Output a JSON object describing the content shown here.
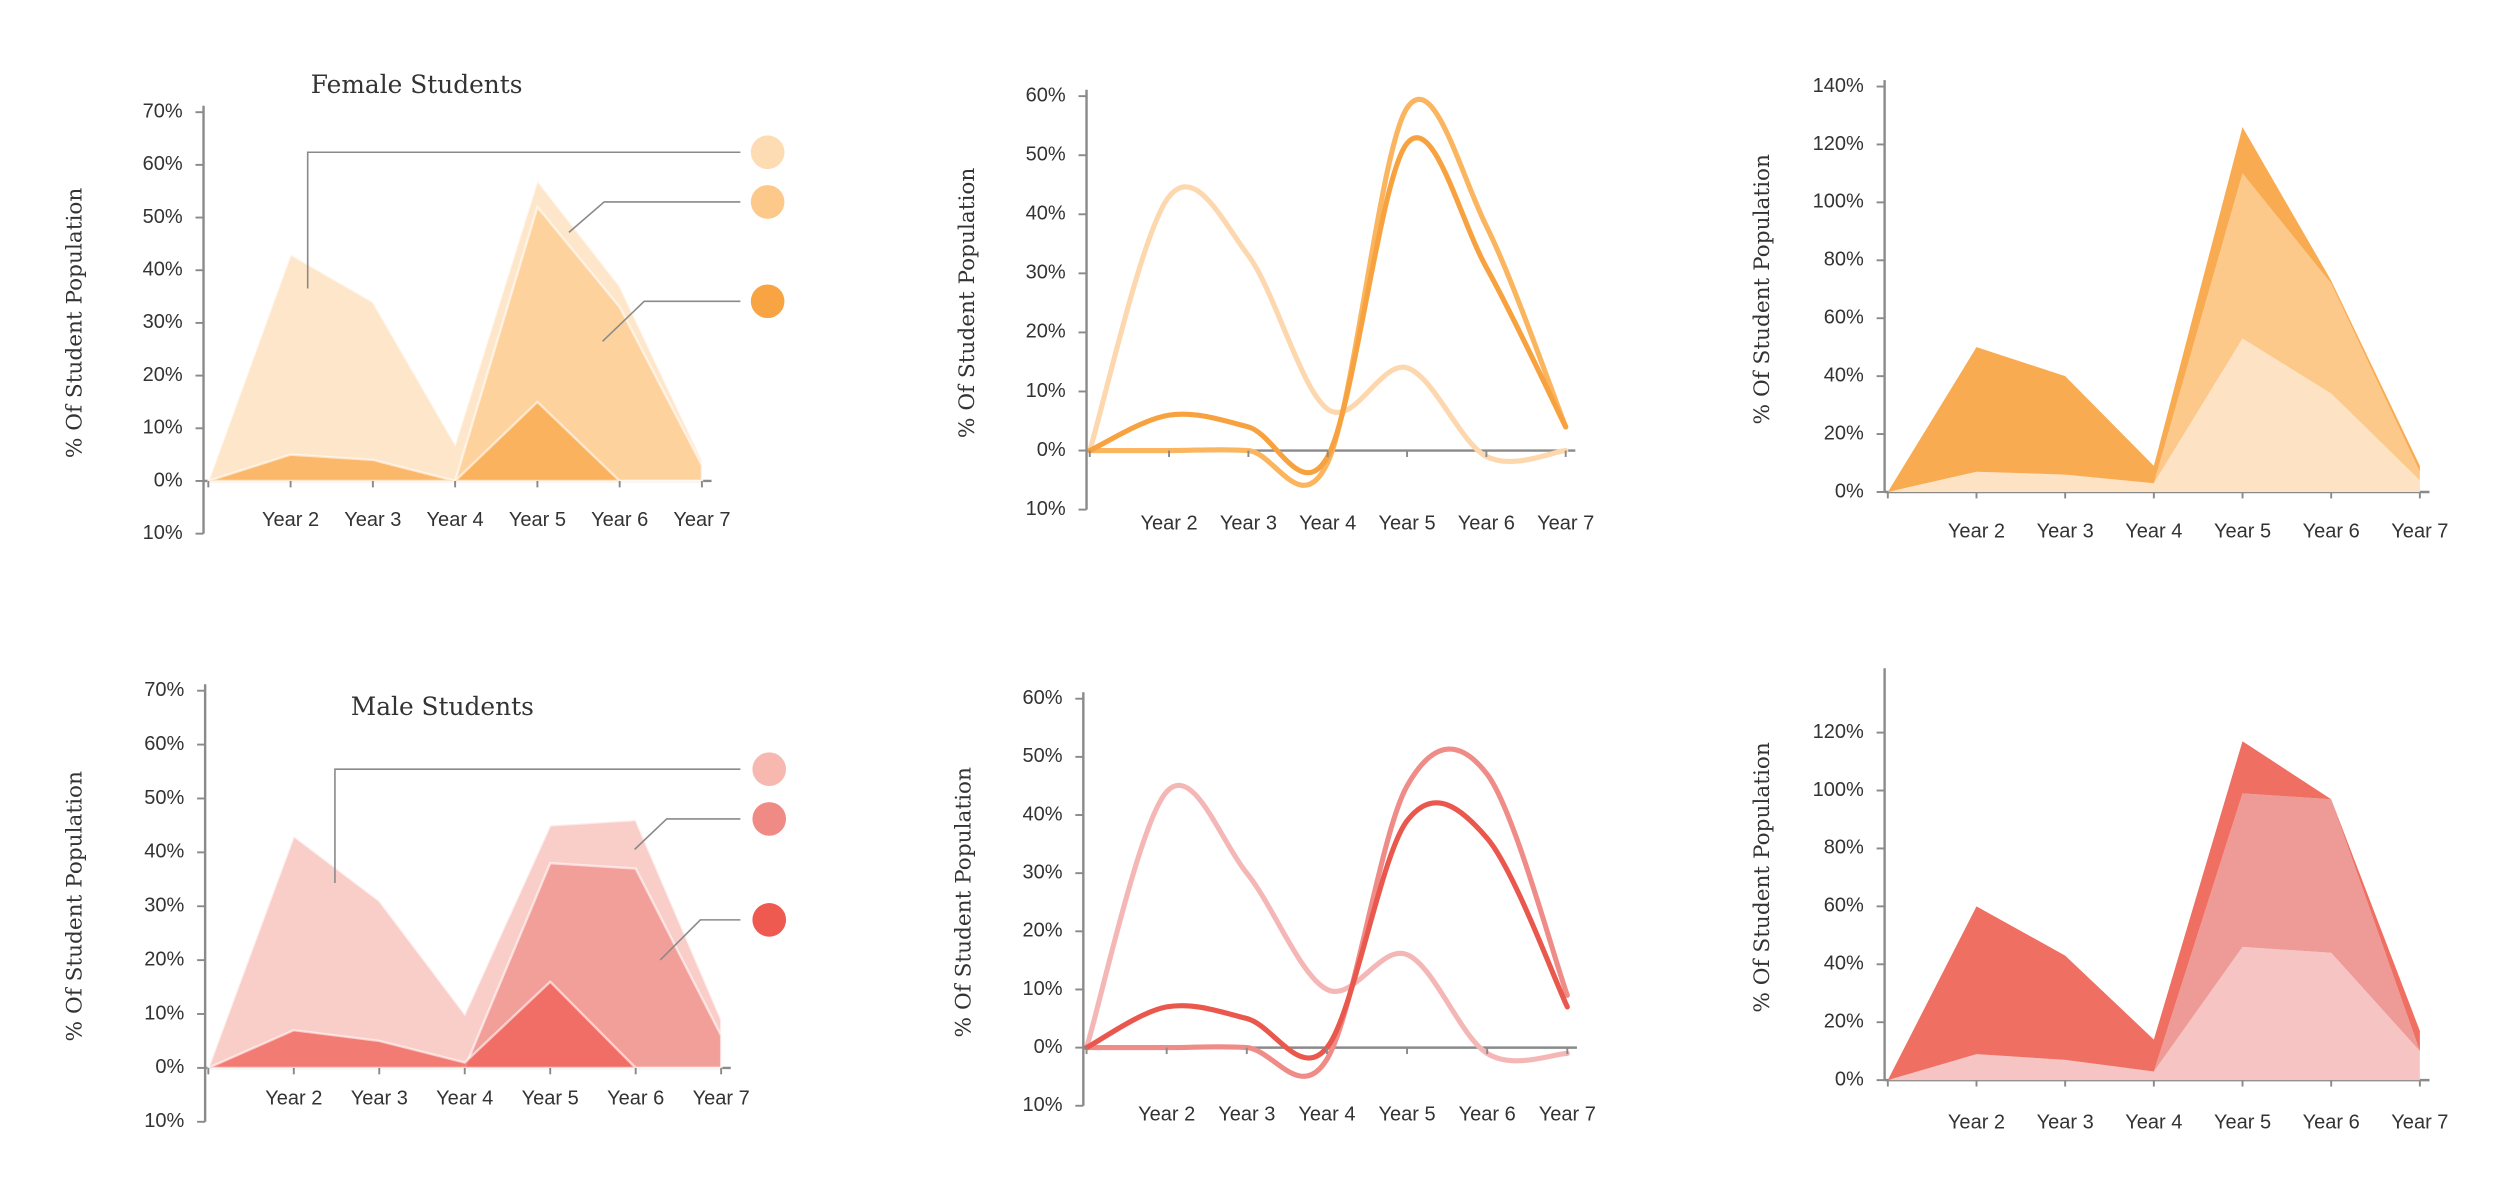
{
  "chart_data": [
    {
      "type": "area",
      "title": "Female Students",
      "y_label": "% Of Student Population",
      "categories": [
        null,
        "Year 2",
        "Year 3",
        "Year 4",
        "Year 5",
        "Year 6",
        "Year 7"
      ],
      "series": [
        {
          "color": "#fddcb4",
          "values": [
            0,
            43,
            34,
            7,
            57,
            37,
            4
          ]
        },
        {
          "color": "#fcc98a",
          "values": [
            0,
            0,
            0,
            0,
            52,
            33,
            3
          ]
        },
        {
          "color": "#f9a443",
          "values": [
            0,
            5,
            4,
            0,
            15,
            0,
            0
          ]
        }
      ],
      "ylim": [
        -10,
        70
      ],
      "yticks": [
        {
          "value": -10,
          "label": "10%"
        },
        {
          "value": 0,
          "label": "0%"
        },
        {
          "value": 10,
          "label": "10%"
        },
        {
          "value": 20,
          "label": "20%"
        },
        {
          "value": 30,
          "label": "30%"
        },
        {
          "value": 40,
          "label": "40%"
        },
        {
          "value": 50,
          "label": "50%"
        },
        {
          "value": 60,
          "label": "60%"
        },
        {
          "value": 70,
          "label": "70%"
        }
      ],
      "legend": true
    },
    {
      "type": "line",
      "y_label": "% Of Student Population",
      "categories": [
        null,
        "Year 2",
        "Year 3",
        "Year 4",
        "Year 5",
        "Year 6",
        "Year 7"
      ],
      "series": [
        {
          "color": "#fdd7ad",
          "values": [
            0,
            43,
            33,
            7,
            14,
            -1,
            0
          ]
        },
        {
          "color": "#fbb55f",
          "values": [
            0,
            0,
            0,
            -2,
            58,
            38,
            4
          ]
        },
        {
          "color": "#f7a23f",
          "values": [
            0,
            6,
            4,
            -1,
            52,
            31,
            4
          ]
        }
      ],
      "ylim": [
        -10,
        60
      ],
      "yticks": [
        {
          "value": -10,
          "label": "10%"
        },
        {
          "value": 0,
          "label": "0%"
        },
        {
          "value": 10,
          "label": "10%"
        },
        {
          "value": 20,
          "label": "20%"
        },
        {
          "value": 30,
          "label": "30%"
        },
        {
          "value": 40,
          "label": "40%"
        },
        {
          "value": 50,
          "label": "50%"
        },
        {
          "value": 60,
          "label": "60%"
        }
      ]
    },
    {
      "type": "area",
      "stacked": true,
      "y_label": "% Of Student Population",
      "categories": [
        null,
        "Year 2",
        "Year 3",
        "Year 4",
        "Year 5",
        "Year 6",
        "Year 7"
      ],
      "series": [
        {
          "color": "#fde3c3",
          "values": [
            0,
            7,
            6,
            3,
            53,
            34,
            4
          ]
        },
        {
          "color": "#fcc98b",
          "values": [
            0,
            0,
            0,
            0,
            57,
            38,
            3
          ]
        },
        {
          "color": "#f9ab52",
          "values": [
            0,
            43,
            34,
            6,
            16,
            1,
            2
          ]
        }
      ],
      "ylim": [
        0,
        140
      ],
      "yticks": [
        {
          "value": 0,
          "label": "0%"
        },
        {
          "value": 20,
          "label": "20%"
        },
        {
          "value": 40,
          "label": "40%"
        },
        {
          "value": 60,
          "label": "60%"
        },
        {
          "value": 80,
          "label": "80%"
        },
        {
          "value": 100,
          "label": "100%"
        },
        {
          "value": 120,
          "label": "120%"
        },
        {
          "value": 140,
          "label": "140%"
        }
      ]
    },
    {
      "type": "area",
      "title": "Male Students",
      "y_label": "% Of Student Population",
      "categories": [
        null,
        "Year 2",
        "Year 3",
        "Year 4",
        "Year 5",
        "Year 6",
        "Year 7"
      ],
      "series": [
        {
          "color": "#f7b8b0",
          "values": [
            0,
            43,
            31,
            10,
            45,
            46,
            9
          ]
        },
        {
          "color": "#f08a85",
          "values": [
            0,
            0,
            0,
            0,
            38,
            37,
            6
          ]
        },
        {
          "color": "#ef5a50",
          "values": [
            0,
            7,
            5,
            1,
            16,
            0,
            0
          ]
        }
      ],
      "ylim": [
        -10,
        70
      ],
      "yticks": [
        {
          "value": -10,
          "label": "10%"
        },
        {
          "value": 0,
          "label": "0%"
        },
        {
          "value": 10,
          "label": "10%"
        },
        {
          "value": 20,
          "label": "20%"
        },
        {
          "value": 30,
          "label": "30%"
        },
        {
          "value": 40,
          "label": "40%"
        },
        {
          "value": 50,
          "label": "50%"
        },
        {
          "value": 60,
          "label": "60%"
        },
        {
          "value": 70,
          "label": "70%"
        }
      ],
      "legend": true
    },
    {
      "type": "line",
      "y_label": "% Of Student Population",
      "categories": [
        null,
        "Year 2",
        "Year 3",
        "Year 4",
        "Year 5",
        "Year 6",
        "Year 7"
      ],
      "series": [
        {
          "color": "#f5b6b6",
          "values": [
            0,
            44,
            30,
            10,
            16,
            -1,
            -1
          ]
        },
        {
          "color": "#ef8c88",
          "values": [
            0,
            0,
            0,
            -2,
            45,
            47,
            9
          ]
        },
        {
          "color": "#e9574d",
          "values": [
            0,
            7,
            5,
            0,
            39,
            36,
            7
          ]
        }
      ],
      "ylim": [
        -10,
        60
      ],
      "yticks": [
        {
          "value": -10,
          "label": "10%"
        },
        {
          "value": 0,
          "label": "0%"
        },
        {
          "value": 10,
          "label": "10%"
        },
        {
          "value": 20,
          "label": "20%"
        },
        {
          "value": 30,
          "label": "30%"
        },
        {
          "value": 40,
          "label": "40%"
        },
        {
          "value": 50,
          "label": "50%"
        },
        {
          "value": 60,
          "label": "60%"
        }
      ]
    },
    {
      "type": "area",
      "stacked": true,
      "y_label": "% Of Student Population",
      "categories": [
        null,
        "Year 2",
        "Year 3",
        "Year 4",
        "Year 5",
        "Year 6",
        "Year 7"
      ],
      "series": [
        {
          "color": "#f7c4c4",
          "values": [
            0,
            9,
            7,
            3,
            46,
            44,
            10
          ]
        },
        {
          "color": "#ee9a96",
          "values": [
            0,
            0,
            0,
            0,
            53,
            53,
            0
          ]
        },
        {
          "color": "#ef6f63",
          "values": [
            0,
            51,
            36,
            11,
            18,
            0,
            7
          ]
        }
      ],
      "ylim": [
        0,
        140
      ],
      "yticks": [
        {
          "value": 0,
          "label": "0%"
        },
        {
          "value": 20,
          "label": "20%"
        },
        {
          "value": 40,
          "label": "40%"
        },
        {
          "value": 60,
          "label": "60%"
        },
        {
          "value": 80,
          "label": "80%"
        },
        {
          "value": 100,
          "label": "100%"
        },
        {
          "value": 120,
          "label": "120%"
        }
      ]
    }
  ]
}
